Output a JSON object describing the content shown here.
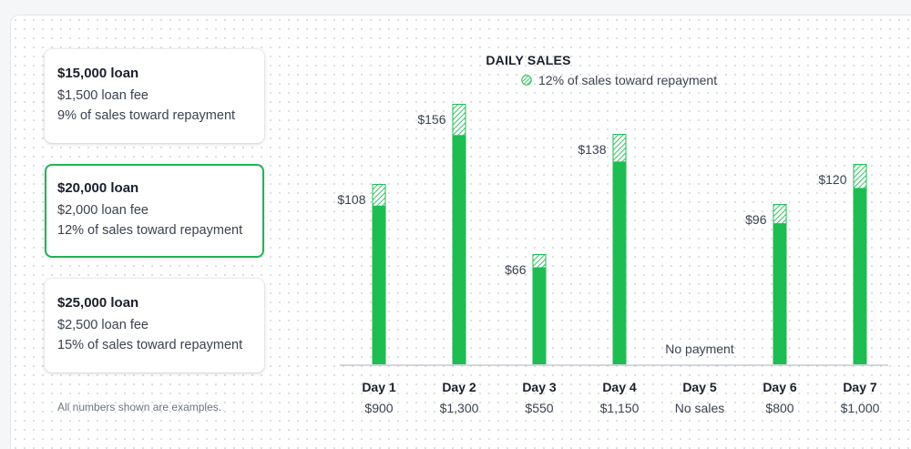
{
  "loan_options": [
    {
      "title": "$15,000 loan",
      "fee": "$1,500 loan fee",
      "repayment": "9% of sales toward repayment",
      "selected": false
    },
    {
      "title": "$20,000 loan",
      "fee": "$2,000 loan fee",
      "repayment": "12% of sales toward repayment",
      "selected": true
    },
    {
      "title": "$25,000 loan",
      "fee": "$2,500 loan fee",
      "repayment": "15% of sales toward repayment",
      "selected": false
    }
  ],
  "footnote": "All numbers shown are examples.",
  "colors": {
    "bar_green": "#1dbd52",
    "hatch_green": "#1dbd52",
    "selected_border": "#22b455"
  },
  "chart_data": {
    "type": "bar",
    "title": "DAILY SALES",
    "legend": "12% of sales toward repayment",
    "legend_icon": "hatched-circle-icon",
    "categories": [
      "Day 1",
      "Day 2",
      "Day 3",
      "Day 4",
      "Day 5",
      "Day 6",
      "Day 7"
    ],
    "sales_labels": [
      "$900",
      "$1,300",
      "$550",
      "$1,150",
      "No sales",
      "$800",
      "$1,000"
    ],
    "sales": [
      900,
      1300,
      550,
      1150,
      0,
      800,
      1000
    ],
    "repayment_labels": [
      "$108",
      "$156",
      "$66",
      "$138",
      "No payment",
      "$96",
      "$120"
    ],
    "repayment": [
      108,
      156,
      66,
      138,
      0,
      96,
      120
    ],
    "stack_order": [
      "remaining sales (solid)",
      "repayment (hatched, top)"
    ],
    "ylim": [
      0,
      1300
    ]
  }
}
